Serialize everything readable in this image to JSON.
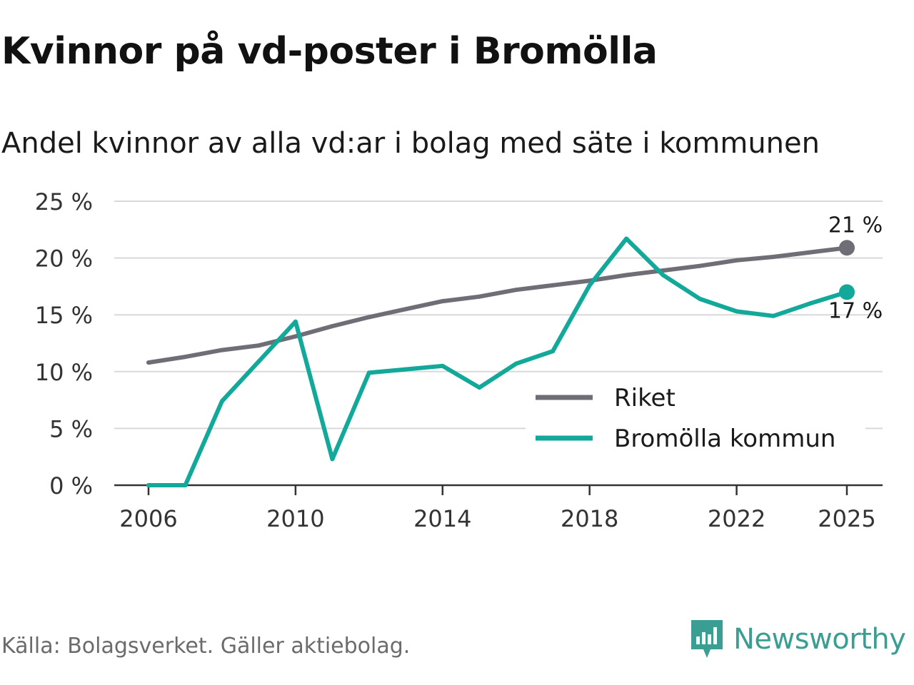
{
  "header": {
    "title": "Kvinnor på vd-poster i Bromölla",
    "subtitle": "Andel kvinnor av alla vd:ar i bolag med säte i kommunen"
  },
  "footer": {
    "source": "Källa: Bolagsverket. Gäller aktiebolag.",
    "brand": "Newsworthy",
    "brand_icon": "bar-chart-logo-icon"
  },
  "colors": {
    "riket": "#6f6e76",
    "kommun": "#12a89a",
    "grid": "#d9d9d9",
    "axis": "#333333",
    "brand": "#3a9e92"
  },
  "chart_data": {
    "type": "line",
    "title": "Kvinnor på vd-poster i Bromölla",
    "subtitle": "Andel kvinnor av alla vd:ar i bolag med säte i kommunen",
    "xlabel": "",
    "ylabel": "",
    "x": [
      2006,
      2007,
      2008,
      2009,
      2010,
      2011,
      2012,
      2013,
      2014,
      2015,
      2016,
      2017,
      2018,
      2019,
      2020,
      2021,
      2022,
      2023,
      2024,
      2025
    ],
    "xlim": [
      2006,
      2025
    ],
    "ylim": [
      0,
      25
    ],
    "grid": true,
    "x_ticks": [
      2006,
      2010,
      2014,
      2018,
      2022,
      2025
    ],
    "x_tick_labels": [
      "2006",
      "2010",
      "2014",
      "2018",
      "2022",
      "2025"
    ],
    "y_ticks": [
      0,
      5,
      10,
      15,
      20,
      25
    ],
    "y_tick_labels": [
      "0 %",
      "5 %",
      "10 %",
      "15 %",
      "20 %",
      "25 %"
    ],
    "legend_position": "bottom-right",
    "series": [
      {
        "name": "Riket",
        "key": "riket",
        "values": [
          10.8,
          11.3,
          11.9,
          12.3,
          13.1,
          14.0,
          14.8,
          15.5,
          16.2,
          16.6,
          17.2,
          17.6,
          18.0,
          18.5,
          18.9,
          19.3,
          19.8,
          20.1,
          20.5,
          20.9
        ],
        "end_label": "21 %"
      },
      {
        "name": "Bromölla kommun",
        "key": "kommun",
        "values": [
          0,
          0,
          7.4,
          10.9,
          14.4,
          2.3,
          9.9,
          10.2,
          10.5,
          8.6,
          10.7,
          11.8,
          17.6,
          21.7,
          18.5,
          16.4,
          15.3,
          14.9,
          16.0,
          17.0
        ],
        "end_label": "17 %"
      }
    ]
  }
}
